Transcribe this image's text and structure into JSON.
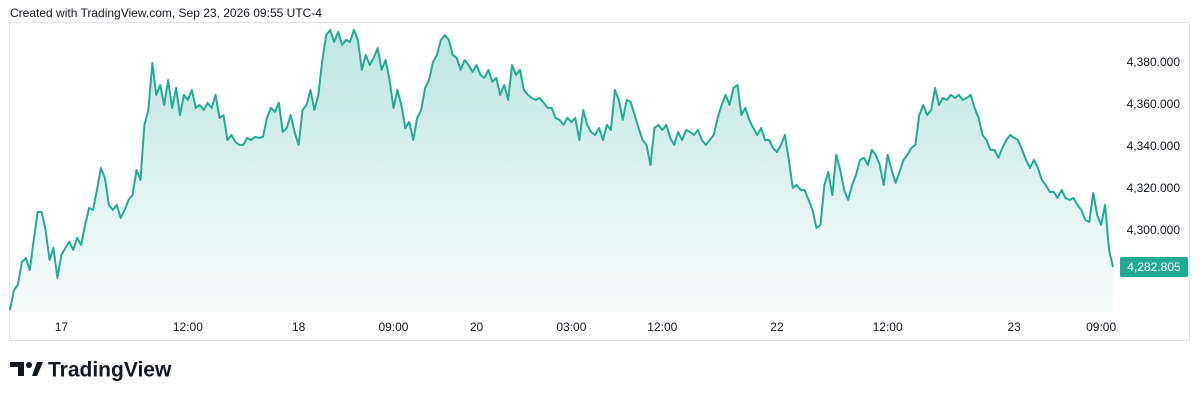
{
  "header": "Created with TradingView.com, Sep 23, 2026 09:55 UTC-4",
  "footer_logo": "TradingView",
  "chart_data": {
    "type": "area",
    "color": "#22ab94",
    "values": [
      4262.4,
      4271.9,
      4274.3,
      4285.2,
      4287.1,
      4281.4,
      4295.7,
      4309.0,
      4309.0,
      4300.5,
      4286.2,
      4291.9,
      4277.6,
      4288.6,
      4291.9,
      4294.8,
      4291.0,
      4296.7,
      4293.3,
      4302.9,
      4311.0,
      4310.0,
      4319.5,
      4330.0,
      4325.2,
      4312.4,
      4310.0,
      4312.4,
      4306.2,
      4310.0,
      4314.8,
      4317.1,
      4329.0,
      4324.3,
      4350.5,
      4357.6,
      4380.0,
      4364.8,
      4369.5,
      4360.0,
      4371.9,
      4358.6,
      4368.1,
      4355.2,
      4364.8,
      4362.4,
      4367.1,
      4358.6,
      4360.0,
      4357.6,
      4361.0,
      4358.6,
      4364.8,
      4353.8,
      4355.2,
      4343.3,
      4345.7,
      4342.4,
      4341.0,
      4341.0,
      4344.3,
      4343.3,
      4344.8,
      4344.3,
      4344.8,
      4353.8,
      4358.6,
      4356.7,
      4361.0,
      4347.1,
      4349.0,
      4355.2,
      4347.1,
      4341.0,
      4357.6,
      4360.0,
      4367.1,
      4357.6,
      4364.8,
      4381.4,
      4393.3,
      4395.7,
      4390.0,
      4394.8,
      4388.6,
      4391.0,
      4390.0,
      4395.7,
      4391.0,
      4376.7,
      4383.8,
      4379.0,
      4382.4,
      4387.1,
      4376.7,
      4381.4,
      4371.9,
      4358.6,
      4367.1,
      4360.0,
      4349.0,
      4351.9,
      4343.3,
      4353.8,
      4357.6,
      4368.1,
      4371.9,
      4380.5,
      4383.8,
      4391.0,
      4393.3,
      4391.0,
      4383.8,
      4382.4,
      4376.7,
      4381.4,
      4379.0,
      4375.7,
      4379.0,
      4374.3,
      4372.9,
      4376.7,
      4371.0,
      4372.9,
      4364.8,
      4369.5,
      4362.4,
      4379.0,
      4374.3,
      4376.7,
      4367.1,
      4364.8,
      4363.3,
      4362.4,
      4363.3,
      4361.0,
      4358.6,
      4358.6,
      4353.8,
      4352.9,
      4350.5,
      4353.8,
      4351.9,
      4353.8,
      4343.3,
      4357.6,
      4350.5,
      4347.1,
      4345.7,
      4349.0,
      4343.3,
      4350.5,
      4348.1,
      4367.1,
      4362.4,
      4352.9,
      4362.4,
      4361.4,
      4355.2,
      4349.0,
      4343.3,
      4341.0,
      4331.4,
      4349.0,
      4350.5,
      4348.1,
      4350.5,
      4344.3,
      4341.0,
      4347.1,
      4343.3,
      4348.1,
      4347.1,
      4345.7,
      4348.1,
      4343.3,
      4341.0,
      4343.3,
      4345.7,
      4353.8,
      4360.0,
      4364.8,
      4360.0,
      4368.1,
      4369.5,
      4355.2,
      4358.6,
      4352.9,
      4349.0,
      4345.7,
      4349.0,
      4343.3,
      4343.3,
      4339.5,
      4337.6,
      4341.0,
      4345.7,
      4333.8,
      4320.5,
      4321.9,
      4319.5,
      4319.5,
      4314.8,
      4310.0,
      4301.4,
      4302.9,
      4321.9,
      4328.1,
      4317.1,
      4336.2,
      4329.0,
      4319.5,
      4314.8,
      4321.9,
      4326.7,
      4333.8,
      4334.8,
      4331.4,
      4338.6,
      4336.2,
      4331.4,
      4321.9,
      4336.2,
      4329.0,
      4322.9,
      4328.1,
      4333.8,
      4336.2,
      4339.5,
      4341.0,
      4355.2,
      4360.0,
      4355.2,
      4357.6,
      4368.1,
      4360.0,
      4363.3,
      4362.4,
      4364.8,
      4363.3,
      4364.8,
      4362.4,
      4363.3,
      4364.8,
      4358.6,
      4353.8,
      4345.7,
      4343.3,
      4338.6,
      4338.6,
      4334.8,
      4339.5,
      4343.3,
      4345.7,
      4344.3,
      4343.3,
      4338.6,
      4333.8,
      4330.0,
      4333.8,
      4330.0,
      4324.3,
      4321.9,
      4318.6,
      4318.6,
      4315.7,
      4319.5,
      4315.7,
      4314.8,
      4315.7,
      4312.4,
      4310.0,
      4305.2,
      4304.3,
      4318.1,
      4307.6,
      4302.9,
      4312.4,
      4291.0,
      4282.805
    ],
    "xlim": [
      0,
      279
    ],
    "xticks": [
      {
        "value": 13,
        "label": "17"
      },
      {
        "value": 45,
        "label": "12:00"
      },
      {
        "value": 73,
        "label": "18"
      },
      {
        "value": 97,
        "label": "09:00"
      },
      {
        "value": 118,
        "label": "20"
      },
      {
        "value": 142,
        "label": "03:00"
      },
      {
        "value": 165,
        "label": "12:00"
      },
      {
        "value": 194,
        "label": "22"
      },
      {
        "value": 222,
        "label": "12:00"
      },
      {
        "value": 254,
        "label": "23"
      },
      {
        "value": 276,
        "label": "09:00"
      }
    ],
    "ylim": [
      4261.4,
      4399.5
    ],
    "yticks": [
      {
        "value": 4300,
        "label": "4,300.000"
      },
      {
        "value": 4320,
        "label": "4,320.000"
      },
      {
        "value": 4340,
        "label": "4,340.000"
      },
      {
        "value": 4360,
        "label": "4,360.000"
      },
      {
        "value": 4380,
        "label": "4,380.000"
      }
    ],
    "price_label": {
      "value": 4282.805,
      "label": "4,282.805"
    },
    "grid": false
  }
}
